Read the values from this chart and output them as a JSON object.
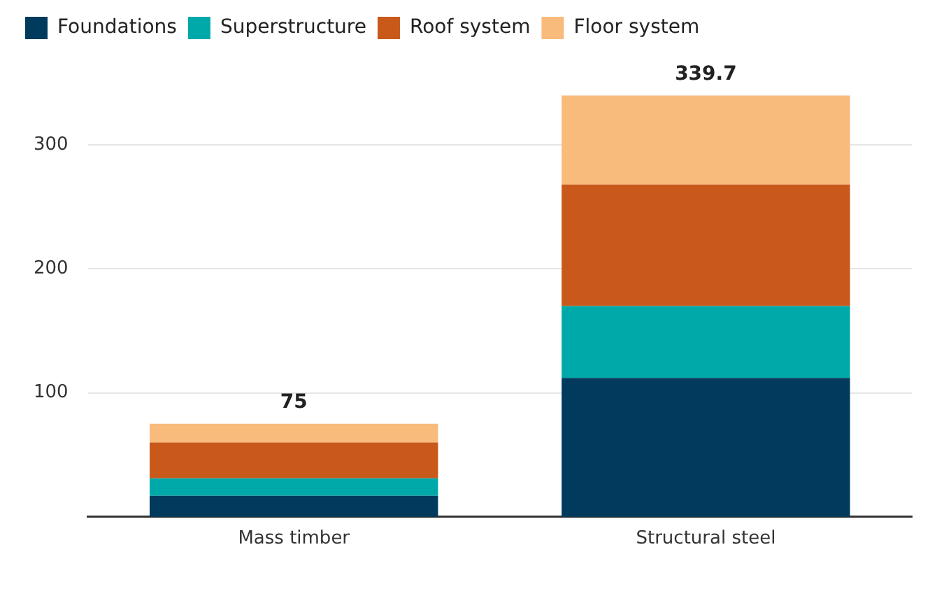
{
  "chart_data": {
    "type": "bar",
    "stacked": true,
    "categories": [
      "Mass timber",
      "Structural steel"
    ],
    "series": [
      {
        "name": "Foundations",
        "color": "#003a5d",
        "values": [
          17,
          112
        ]
      },
      {
        "name": "Superstructure",
        "color": "#00a9a9",
        "values": [
          14,
          58
        ]
      },
      {
        "name": "Roof system",
        "color": "#c9591a",
        "values": [
          29,
          98
        ]
      },
      {
        "name": "Floor system",
        "color": "#f9bb7c",
        "values": [
          15,
          71.7
        ]
      }
    ],
    "totals": [
      "75",
      "339.7"
    ],
    "ylim": [
      0,
      340
    ],
    "yticks": [
      100,
      200,
      300
    ],
    "grid": "y",
    "legend": "top left"
  }
}
